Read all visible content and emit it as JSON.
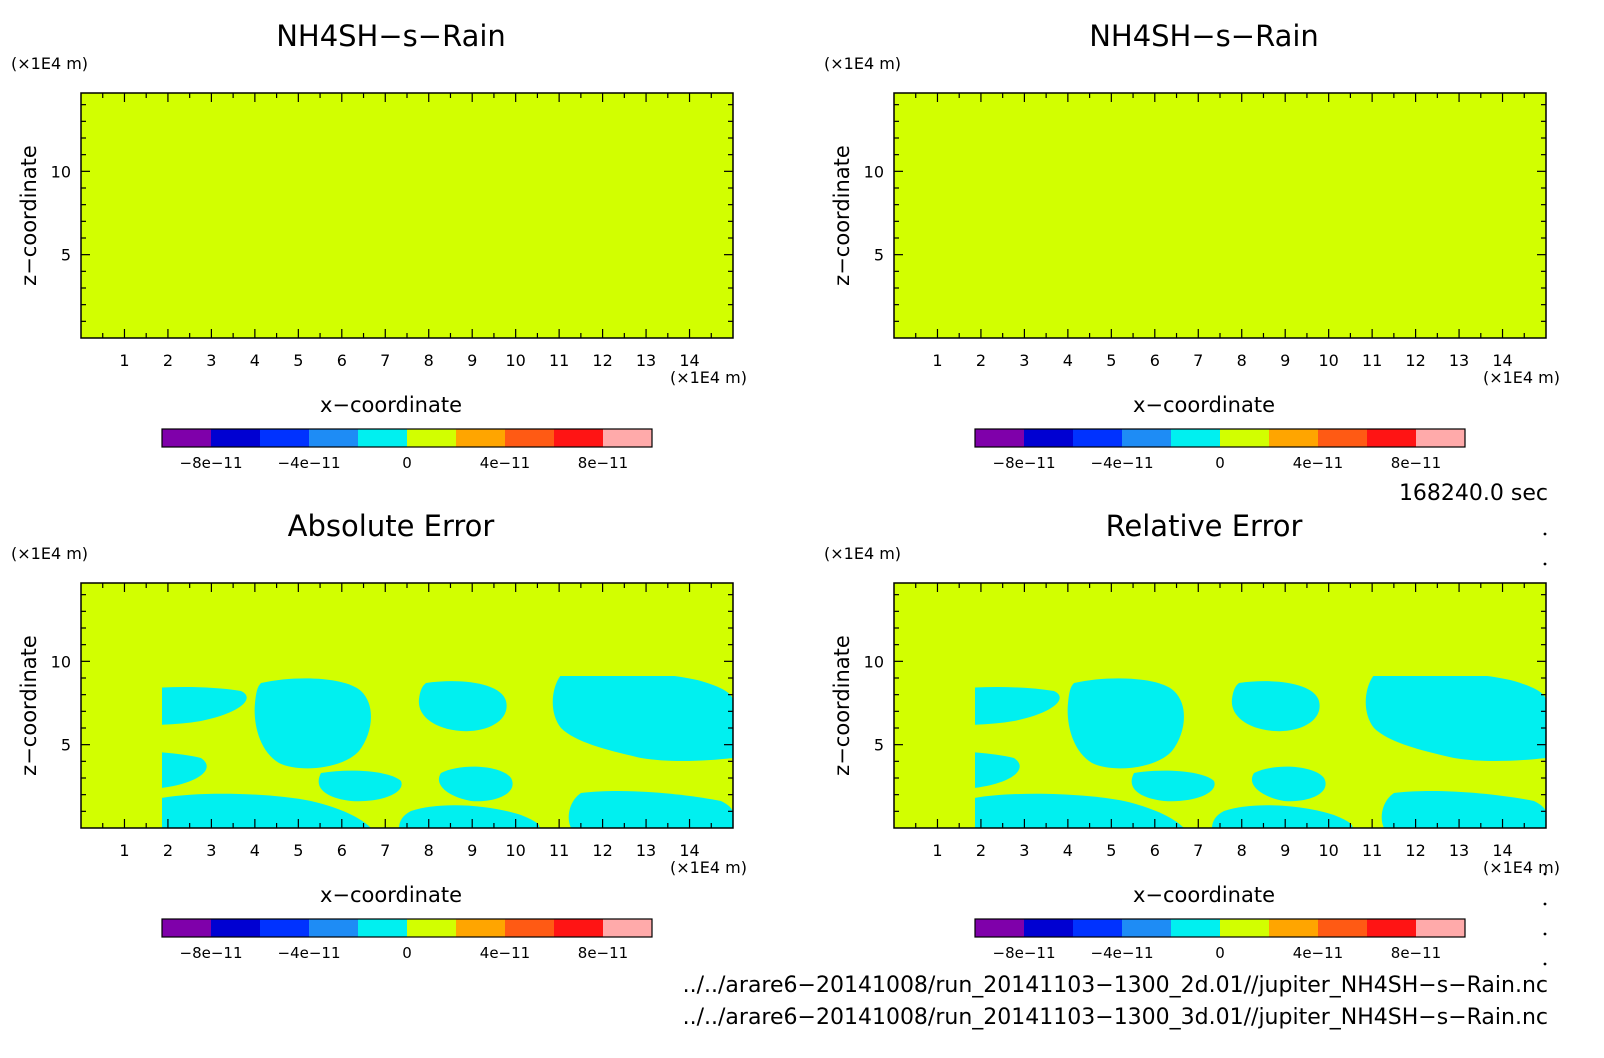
{
  "panels": [
    {
      "title": "NH4SH−s−Rain",
      "unit_y": "(×1E4 m)",
      "unit_x": "(×1E4 m)",
      "xlabel": "x−coordinate",
      "ylabel": "z−coordinate",
      "fill": "uniform"
    },
    {
      "title": "NH4SH−s−Rain",
      "unit_y": "(×1E4 m)",
      "unit_x": "(×1E4 m)",
      "xlabel": "x−coordinate",
      "ylabel": "z−coordinate",
      "fill": "uniform"
    },
    {
      "title": "Absolute Error",
      "unit_y": "(×1E4 m)",
      "unit_x": "(×1E4 m)",
      "xlabel": "x−coordinate",
      "ylabel": "z−coordinate",
      "fill": "patches"
    },
    {
      "title": "Relative Error",
      "unit_y": "(×1E4 m)",
      "unit_x": "(×1E4 m)",
      "xlabel": "x−coordinate",
      "ylabel": "z−coordinate",
      "fill": "patches"
    }
  ],
  "time_label": "168240.0 sec",
  "file_paths": [
    "../../arare6−20141008/run_20141103−1300_2d.01//jupiter_NH4SH−s−Rain.nc",
    "../../arare6−20141008/run_20141103−1300_3d.01//jupiter_NH4SH−s−Rain.nc"
  ],
  "chart_data": {
    "type": "heatmap",
    "x_ticks": [
      "1",
      "2",
      "3",
      "4",
      "5",
      "6",
      "7",
      "8",
      "9",
      "10",
      "11",
      "12",
      "13",
      "14"
    ],
    "y_ticks": [
      "5",
      "10"
    ],
    "xlim": [
      0,
      15
    ],
    "ylim": [
      0,
      14.7
    ],
    "colorbar": {
      "colors": [
        "#7f00aa",
        "#0000d2",
        "#0032ff",
        "#1e8cf5",
        "#00f0f0",
        "#d2ff00",
        "#ffa500",
        "#ff5a14",
        "#ff1414",
        "#ffaaaa"
      ],
      "tick_labels": [
        "−8e−11",
        "−4e−11",
        "0",
        "4e−11",
        "8e−11"
      ],
      "tick_values": [
        -8e-11,
        -4e-11,
        0,
        4e-11,
        8e-11
      ]
    },
    "uniform_color": "#d2ff00",
    "patch_color": "#00f0f0"
  }
}
